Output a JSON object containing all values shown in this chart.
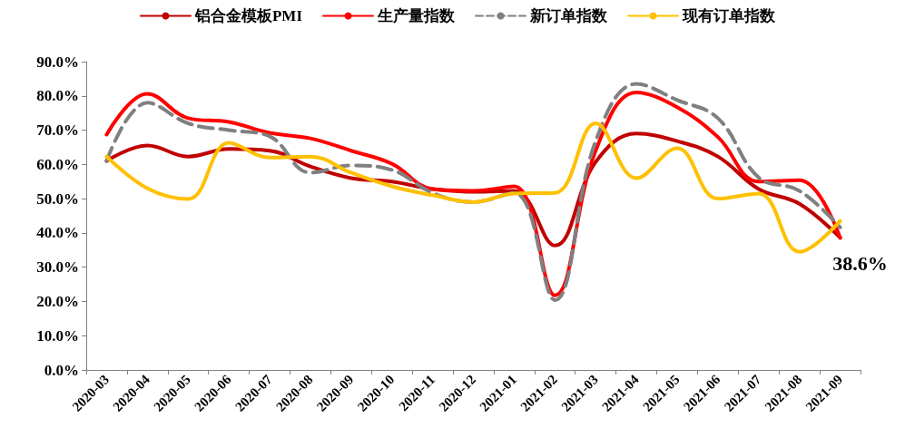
{
  "chart_data": {
    "type": "line",
    "categories": [
      "2020-03",
      "2020-04",
      "2020-05",
      "2020-06",
      "2020-07",
      "2020-08",
      "2020-09",
      "2020-10",
      "2020-11",
      "2020-12",
      "2021-01",
      "2021-02",
      "2021-03",
      "2021-04",
      "2021-05",
      "2021-06",
      "2021-07",
      "2021-08",
      "2021-09"
    ],
    "series": [
      {
        "name": "铝合金模板PMI",
        "color": "#c00000",
        "line_style": "solid",
        "values": [
          61.0,
          65.5,
          62.3,
          64.5,
          64.0,
          59.4,
          56.0,
          55.0,
          52.8,
          52.0,
          52.3,
          36.3,
          60.7,
          69.0,
          66.8,
          62.3,
          52.8,
          48.5,
          38.6
        ]
      },
      {
        "name": "生产量指数",
        "color": "#ff0000",
        "line_style": "solid",
        "values": [
          68.7,
          80.6,
          73.5,
          72.4,
          69.2,
          67.6,
          64.0,
          60.2,
          52.8,
          52.3,
          53.6,
          21.8,
          64.0,
          81.0,
          76.7,
          68.0,
          55.0,
          55.4,
          38.5
        ]
      },
      {
        "name": "新订单指数",
        "color": "#808080",
        "line_style": "dashed",
        "values": [
          61.0,
          78.0,
          72.0,
          70.0,
          68.2,
          57.6,
          59.7,
          58.4,
          51.7,
          49.0,
          51.7,
          20.4,
          66.8,
          83.5,
          78.8,
          73.5,
          56.2,
          52.3,
          41.6
        ]
      },
      {
        "name": "现有订单指数",
        "color": "#ffc000",
        "line_style": "solid",
        "values": [
          62.3,
          53.0,
          49.9,
          66.3,
          62.0,
          62.3,
          57.6,
          53.6,
          51.0,
          49.0,
          51.5,
          51.7,
          72.0,
          56.0,
          64.7,
          50.0,
          51.5,
          34.5,
          43.5
        ]
      }
    ],
    "ylim": [
      0,
      90
    ],
    "yticks": [
      {
        "value": 0,
        "label": "0.0%"
      },
      {
        "value": 10,
        "label": "10.0%"
      },
      {
        "value": 20,
        "label": "20.0%"
      },
      {
        "value": 30,
        "label": "30.0%"
      },
      {
        "value": 40,
        "label": "40.0%"
      },
      {
        "value": 50,
        "label": "50.0%"
      },
      {
        "value": 60,
        "label": "60.0%"
      },
      {
        "value": 70,
        "label": "70.0%"
      },
      {
        "value": 80,
        "label": "80.0%"
      },
      {
        "value": 90,
        "label": "90.0%"
      }
    ],
    "grid": false,
    "legend": "top",
    "marker": "none",
    "annotations": [
      {
        "text": "38.6%",
        "x": "2021-09",
        "y": 38.6
      }
    ]
  }
}
